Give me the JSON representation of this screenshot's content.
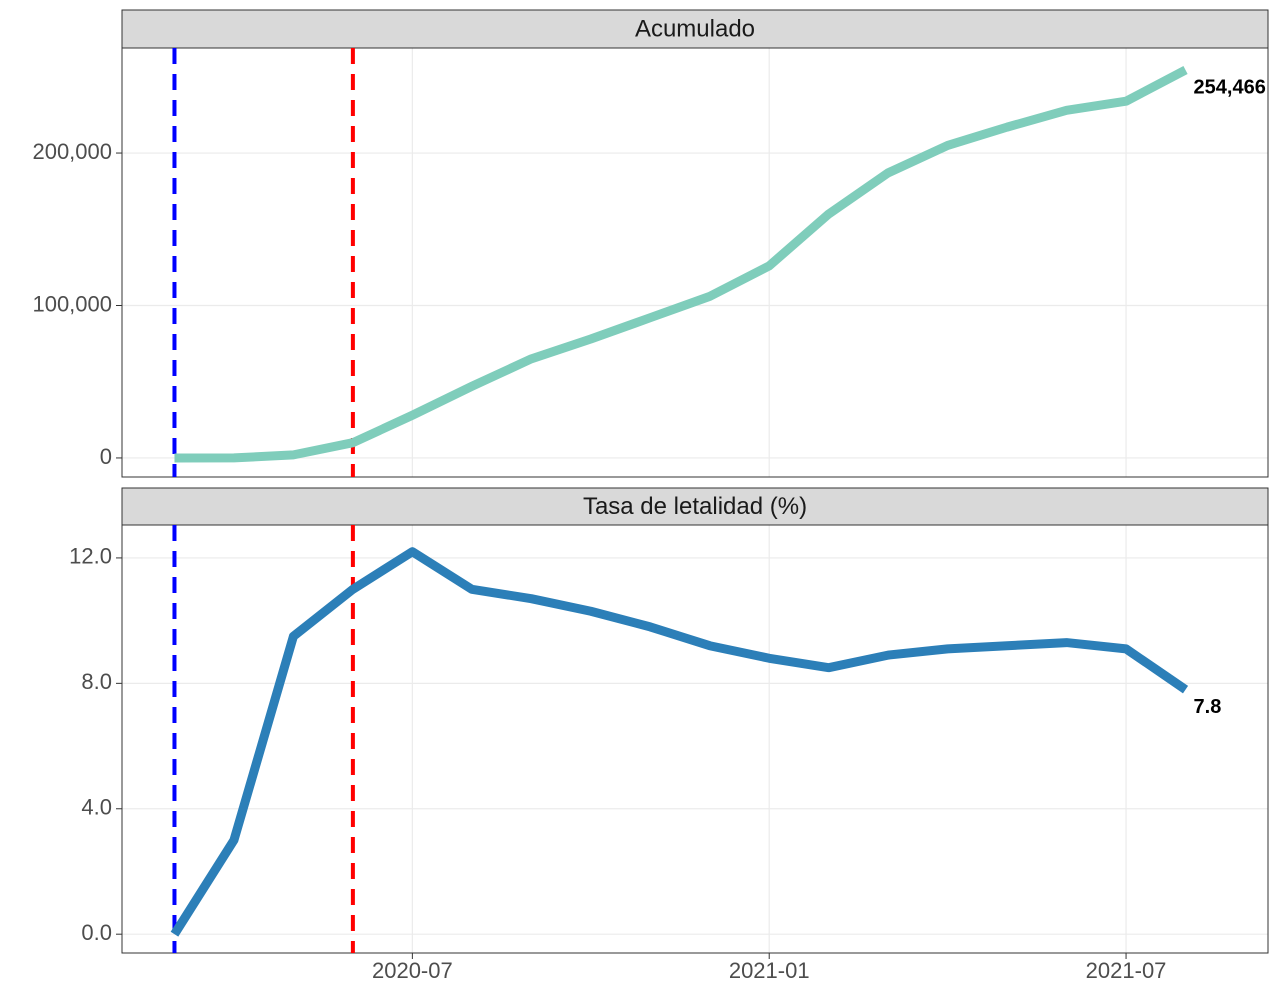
{
  "chart_data": [
    {
      "type": "line",
      "title": "Acumulado",
      "x": [
        "2020-03",
        "2020-04",
        "2020-05",
        "2020-06",
        "2020-07",
        "2020-08",
        "2020-09",
        "2020-10",
        "2020-11",
        "2020-12",
        "2021-01",
        "2021-02",
        "2021-03",
        "2021-04",
        "2021-05",
        "2021-06",
        "2021-07",
        "2021-08"
      ],
      "series": [
        {
          "name": "Acumulado",
          "color": "#7fcdbb",
          "values": [
            0,
            30,
            2000,
            10000,
            28000,
            47000,
            65000,
            78000,
            92000,
            106000,
            126000,
            160000,
            187000,
            205000,
            217000,
            228000,
            234000,
            254466
          ],
          "value_labels": [
            null,
            null,
            null,
            null,
            null,
            null,
            null,
            null,
            null,
            null,
            null,
            null,
            null,
            null,
            null,
            null,
            null,
            "254,466"
          ]
        }
      ],
      "xlim": [
        "2020-02",
        "2021-09"
      ],
      "xticks": [
        "2020-07",
        "2021-01",
        "2021-07"
      ],
      "show_xtick_labels": false,
      "ylim": [
        -12500,
        268900
      ],
      "yticks": [
        0,
        {
          "value": 100000,
          "label": "100,000"
        },
        {
          "value": 200000,
          "label": "200,000"
        }
      ],
      "grid": true,
      "vlines": [
        {
          "x": "2020-03",
          "color": "#0000ff"
        },
        {
          "x": "2020-06",
          "color": "#ff0000"
        }
      ]
    },
    {
      "type": "line",
      "title": "Tasa de letalidad (%)",
      "x": [
        "2020-03",
        "2020-04",
        "2020-05",
        "2020-06",
        "2020-07",
        "2020-08",
        "2020-09",
        "2020-10",
        "2020-11",
        "2020-12",
        "2021-01",
        "2021-02",
        "2021-03",
        "2021-04",
        "2021-05",
        "2021-06",
        "2021-07",
        "2021-08"
      ],
      "series": [
        {
          "name": "Tasa de letalidad (%)",
          "color": "#2c7fb8",
          "values": [
            0,
            3,
            9.5,
            11,
            12.2,
            11,
            10.7,
            10.3,
            9.8,
            9.2,
            8.8,
            8.5,
            8.9,
            9.1,
            9.2,
            9.3,
            9.1,
            7.8
          ],
          "value_labels": [
            null,
            null,
            null,
            null,
            null,
            null,
            null,
            null,
            null,
            null,
            null,
            null,
            null,
            null,
            null,
            null,
            null,
            7.8
          ]
        }
      ],
      "xlim": [
        "2020-02",
        "2021-09"
      ],
      "xticks": [
        "2020-07",
        "2021-01",
        "2021-07"
      ],
      "show_xtick_labels": true,
      "ylim": [
        -0.6,
        13.05
      ],
      "yticks": [
        {
          "value": 0,
          "label": "0.0"
        },
        {
          "value": 4,
          "label": "4.0"
        },
        {
          "value": 8,
          "label": "8.0"
        },
        {
          "value": 12,
          "label": "12.0"
        }
      ],
      "grid": true,
      "vlines": [
        {
          "x": "2020-03",
          "color": "#0000ff"
        },
        {
          "x": "2020-06",
          "color": "#ff0000"
        }
      ]
    }
  ]
}
